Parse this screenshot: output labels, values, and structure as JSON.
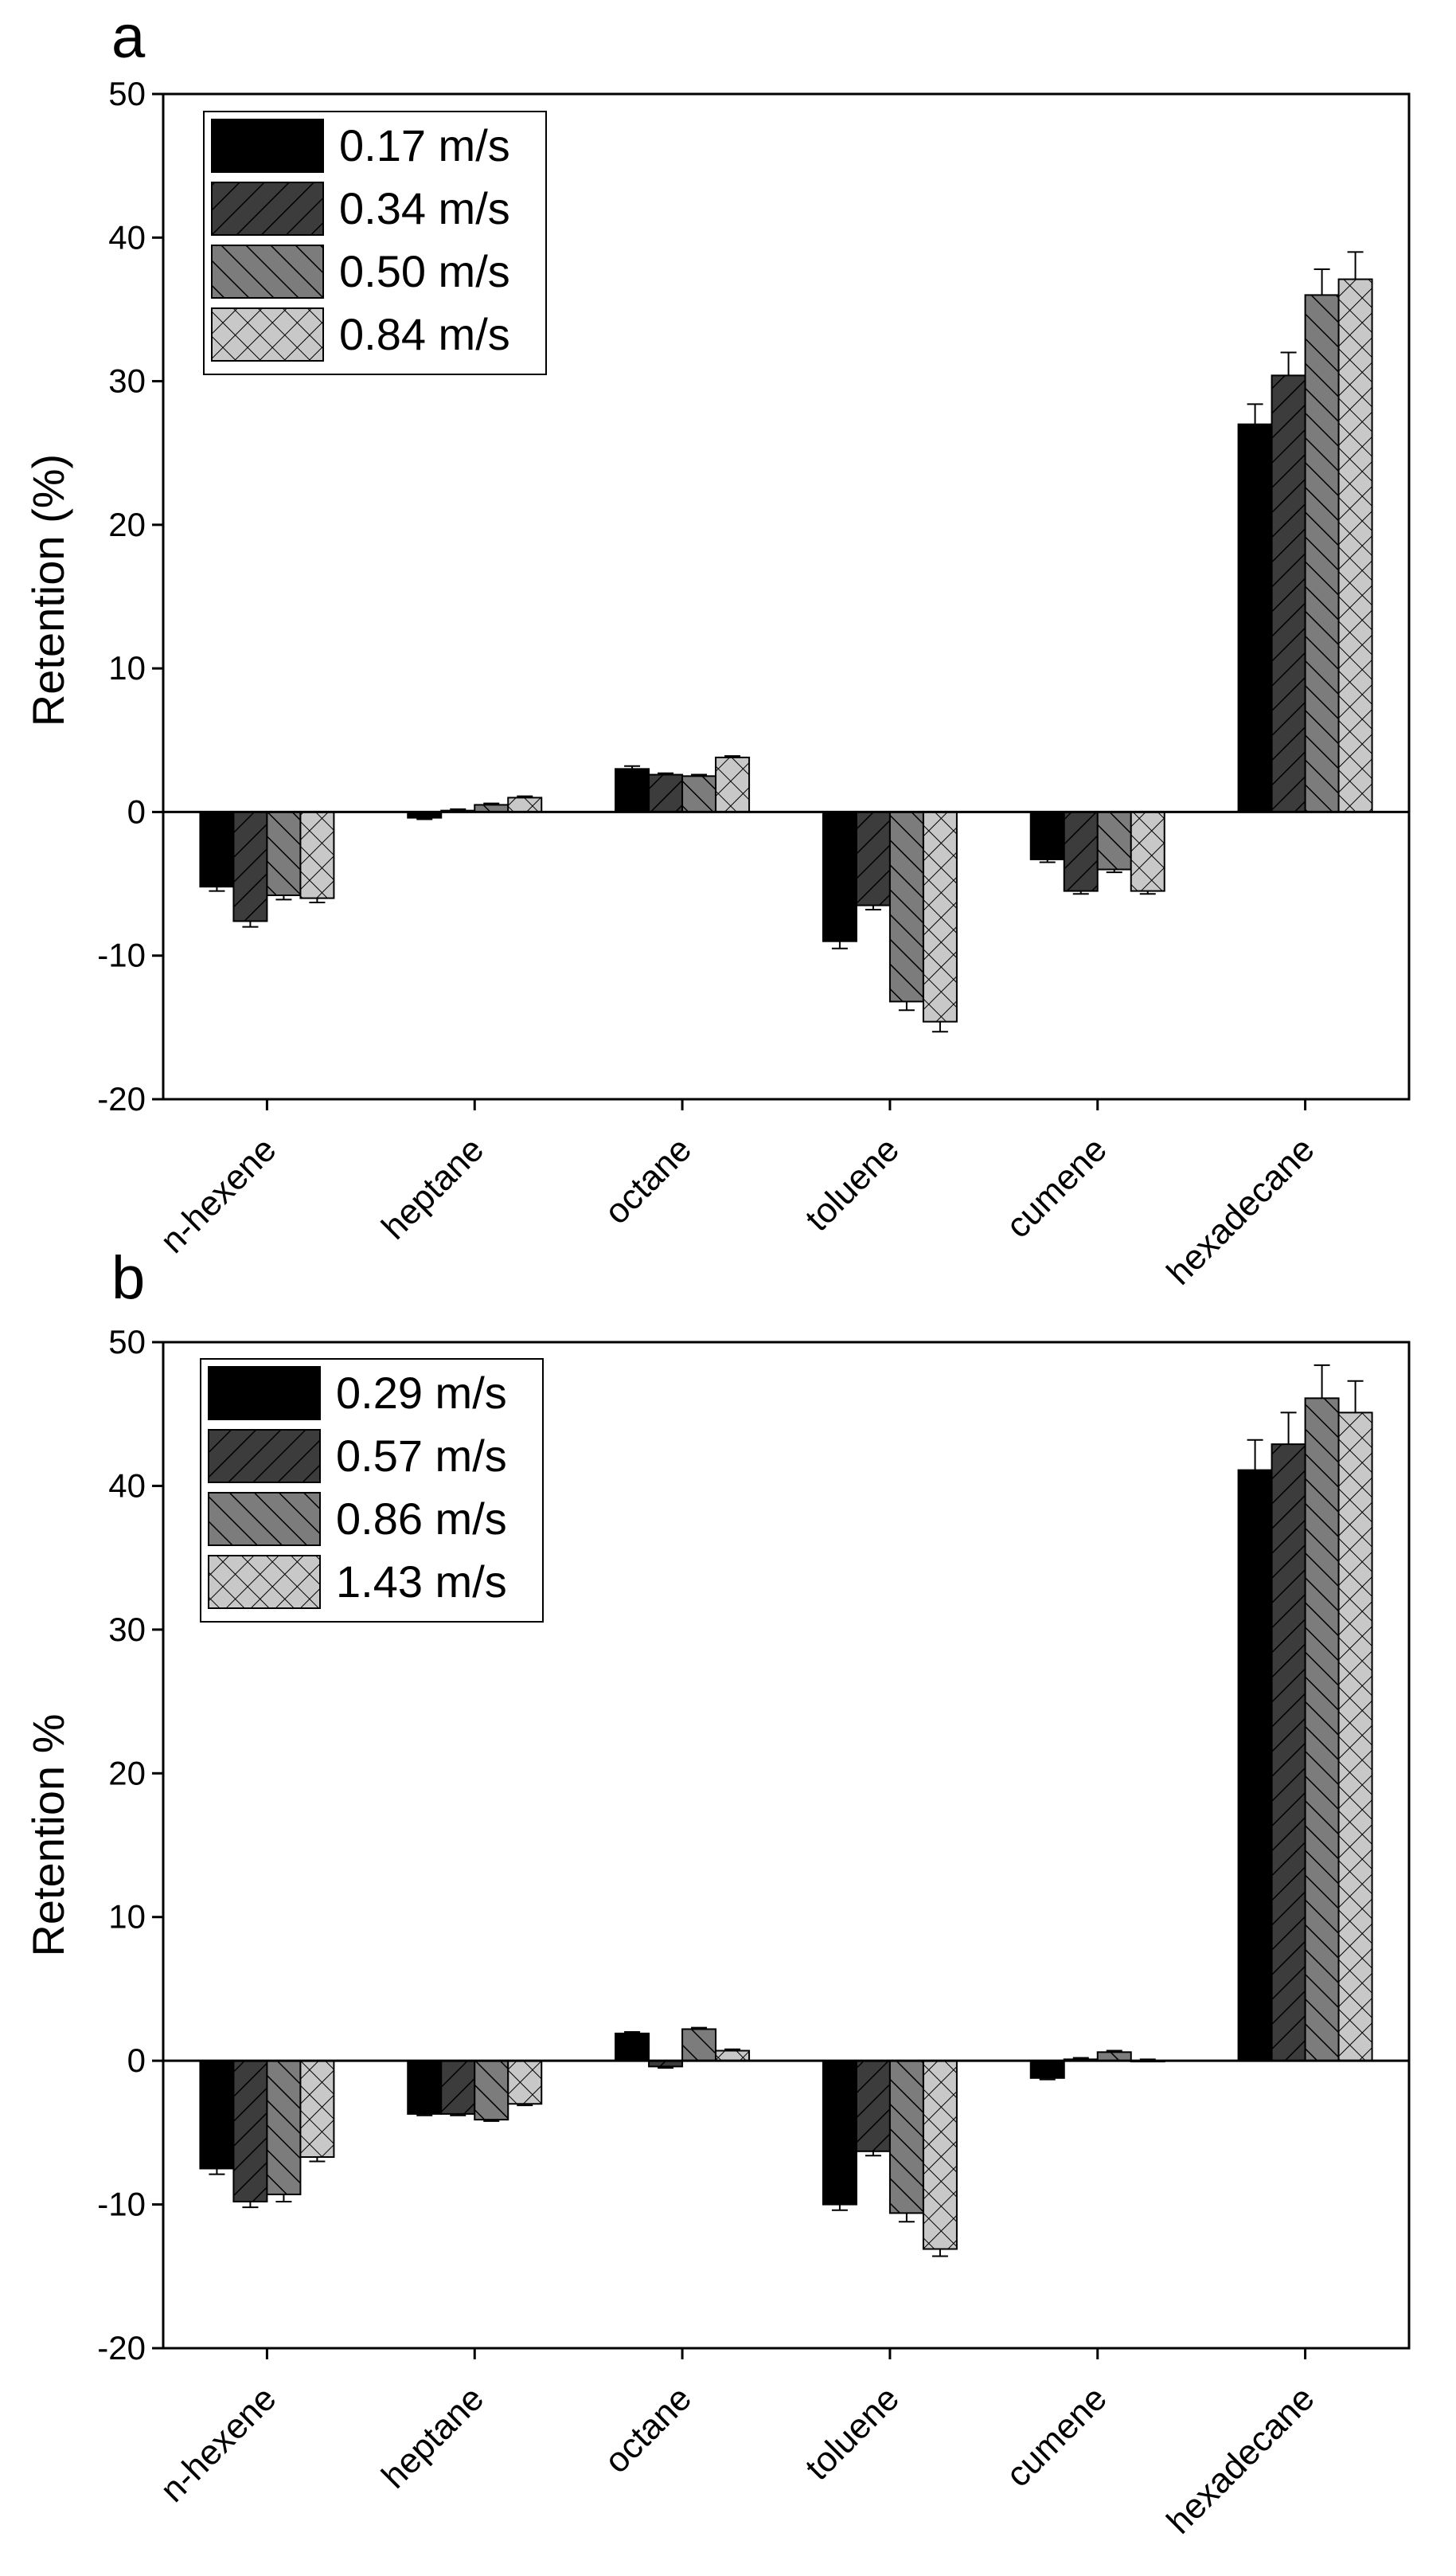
{
  "chart_data": [
    {
      "type": "bar",
      "panel_label": "a",
      "title": "",
      "xlabel": "",
      "ylabel": "Retention (%)",
      "ylim": [
        -20,
        50
      ],
      "yticks": [
        -20,
        -10,
        0,
        10,
        20,
        30,
        40,
        50
      ],
      "categories": [
        "n-hexene",
        "heptane",
        "octane",
        "toluene",
        "cumene",
        "hexadecane"
      ],
      "legend_position": "top-left",
      "series": [
        {
          "name": "0.17 m/s",
          "values": [
            -5.2,
            -0.4,
            3.0,
            -9.0,
            -3.3,
            27.0
          ],
          "errors": [
            0.3,
            0.1,
            0.2,
            0.5,
            0.2,
            1.4
          ]
        },
        {
          "name": "0.34 m/s",
          "values": [
            -7.6,
            0.1,
            2.6,
            -6.5,
            -5.5,
            30.4
          ],
          "errors": [
            0.4,
            0.1,
            0.1,
            0.3,
            0.2,
            1.6
          ]
        },
        {
          "name": "0.50 m/s",
          "values": [
            -5.8,
            0.5,
            2.5,
            -13.2,
            -4.0,
            36.0
          ],
          "errors": [
            0.3,
            0.1,
            0.1,
            0.6,
            0.2,
            1.8
          ]
        },
        {
          "name": "0.84 m/s",
          "values": [
            -6.0,
            1.0,
            3.8,
            -14.6,
            -5.5,
            37.1
          ],
          "errors": [
            0.3,
            0.1,
            0.1,
            0.7,
            0.2,
            1.9
          ]
        }
      ]
    },
    {
      "type": "bar",
      "panel_label": "b",
      "title": "",
      "xlabel": "",
      "ylabel": "Retention %",
      "ylim": [
        -20,
        50
      ],
      "yticks": [
        -20,
        -10,
        0,
        10,
        20,
        30,
        40,
        50
      ],
      "categories": [
        "n-hexene",
        "heptane",
        "octane",
        "toluene",
        "cumene",
        "hexadecane"
      ],
      "legend_position": "top-left",
      "series": [
        {
          "name": "0.29 m/s",
          "values": [
            -7.5,
            -3.7,
            1.9,
            -10.0,
            -1.2,
            41.1
          ],
          "errors": [
            0.4,
            0.1,
            0.1,
            0.4,
            0.1,
            2.1
          ]
        },
        {
          "name": "0.57 m/s",
          "values": [
            -9.8,
            -3.7,
            -0.4,
            -6.3,
            0.1,
            42.9
          ],
          "errors": [
            0.4,
            0.1,
            0.1,
            0.3,
            0.1,
            2.2
          ]
        },
        {
          "name": "0.86 m/s",
          "values": [
            -9.3,
            -4.1,
            2.2,
            -10.6,
            0.6,
            46.1
          ],
          "errors": [
            0.5,
            0.1,
            0.1,
            0.6,
            0.1,
            2.3
          ]
        },
        {
          "name": "1.43 m/s",
          "values": [
            -6.7,
            -3.0,
            0.7,
            -13.1,
            0.0,
            45.1
          ],
          "errors": [
            0.3,
            0.1,
            0.1,
            0.5,
            0.1,
            2.2
          ]
        }
      ]
    }
  ],
  "style": {
    "series_fills": [
      "#000000",
      "#3c3c3c",
      "#7c7c7c",
      "#c8c8c8"
    ],
    "series_patterns": [
      "solid",
      "forward-hatch",
      "back-hatch",
      "cross-hatch"
    ],
    "axis_color": "#000000",
    "background": "#ffffff"
  }
}
